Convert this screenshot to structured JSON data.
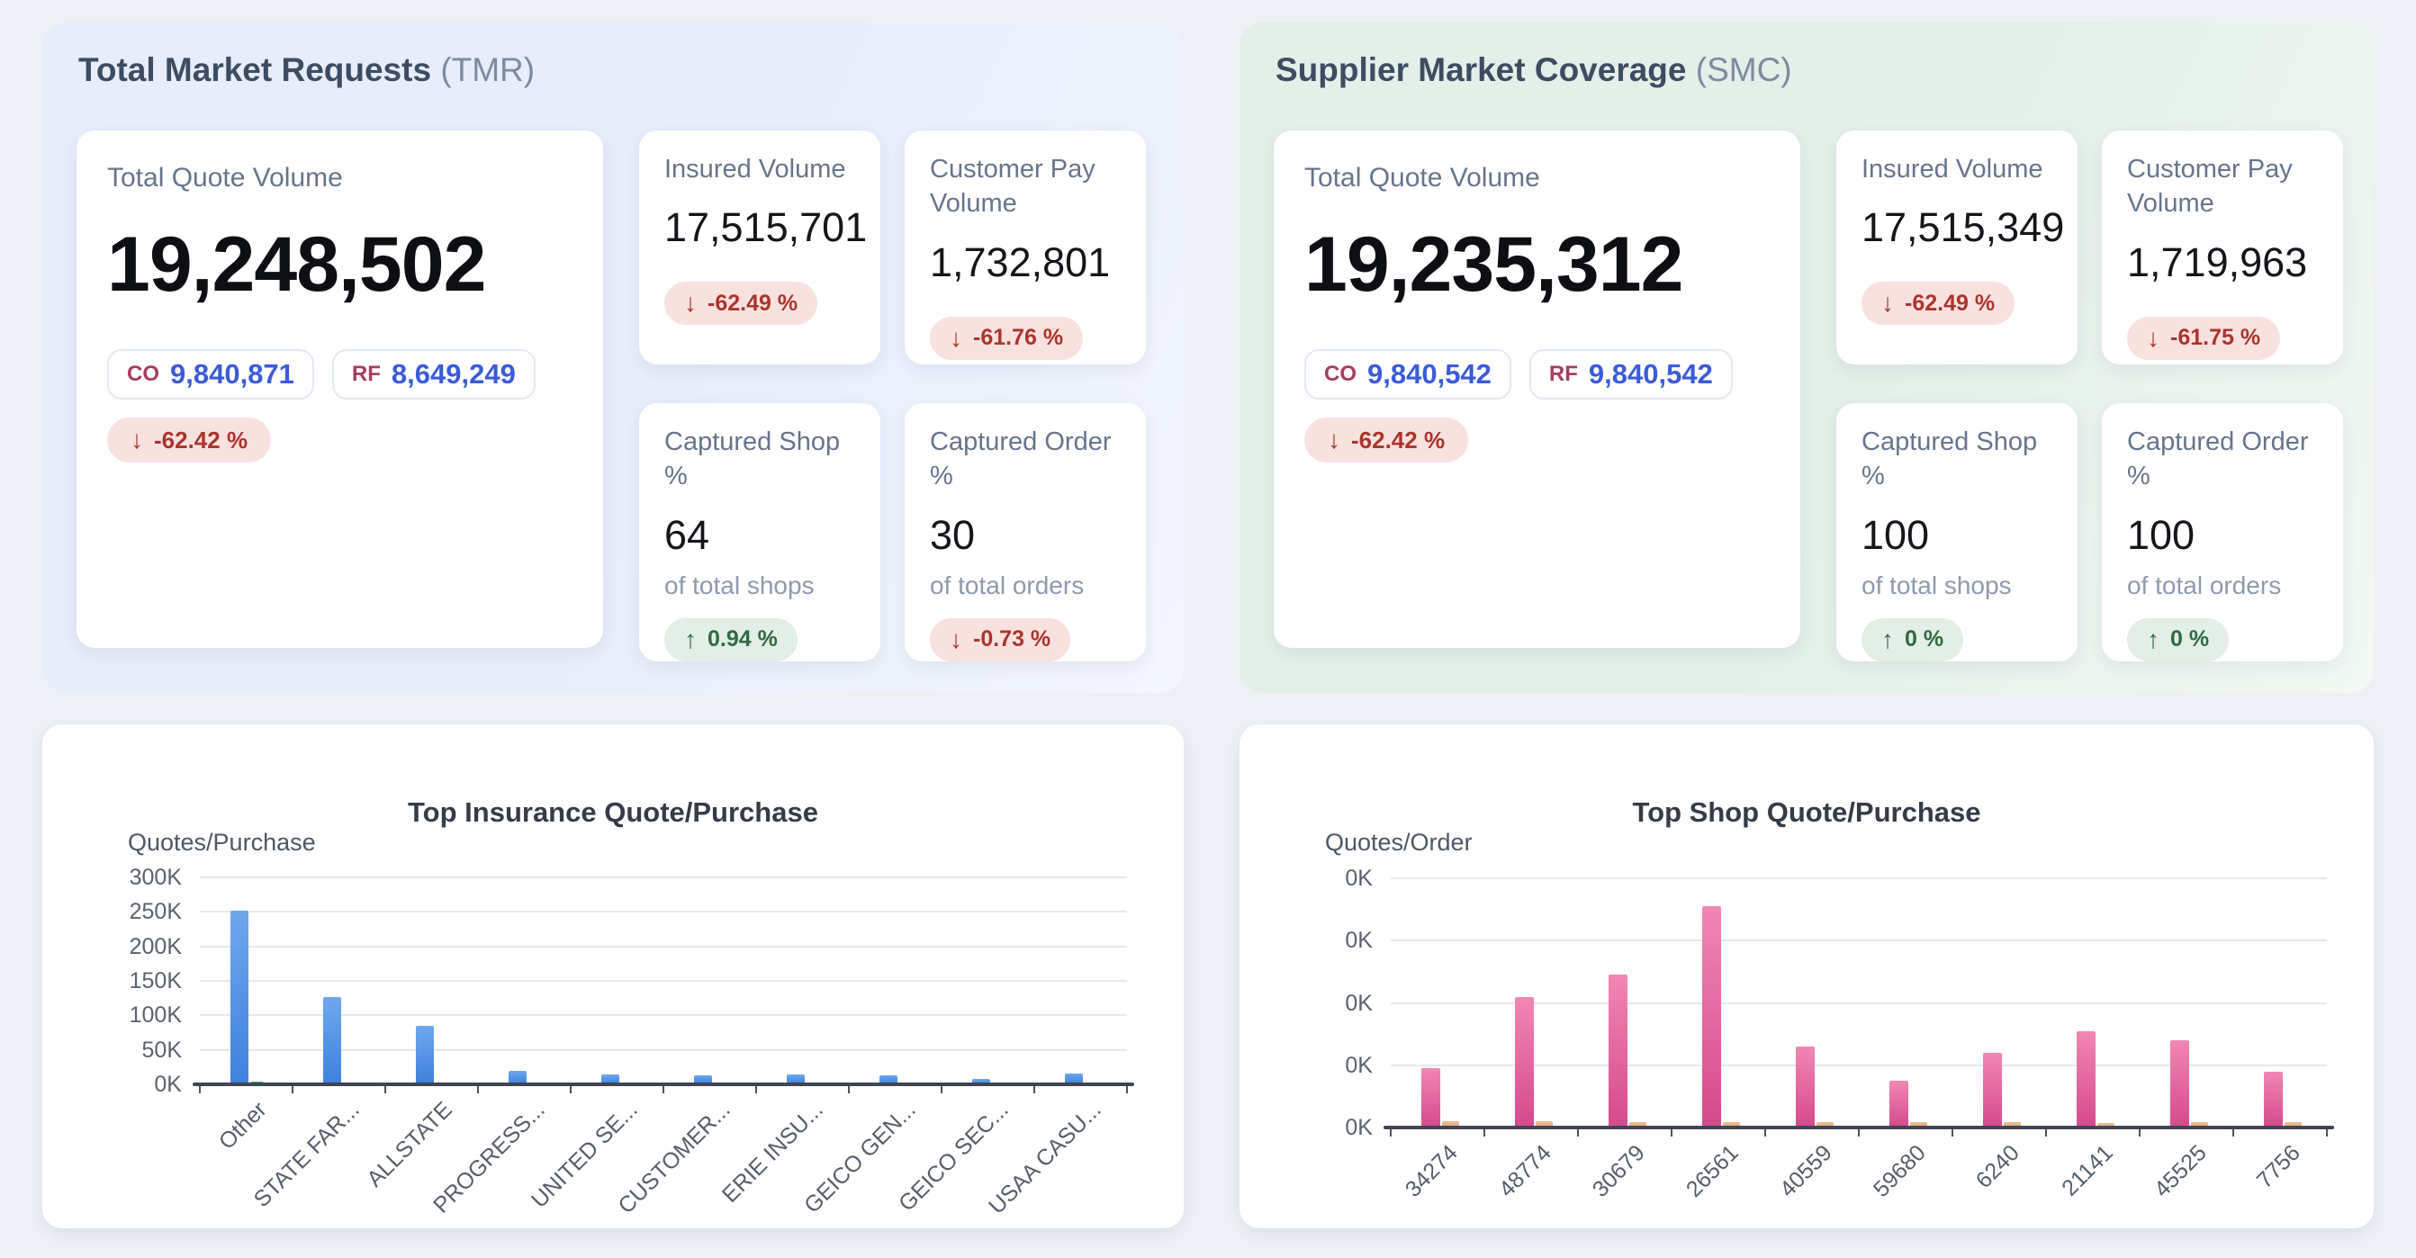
{
  "icons": {
    "arrow_down": "↓",
    "arrow_up": "↑"
  },
  "colors": {
    "page_bg": "#edf0f5",
    "tmr_panel_bg": "#e7edfb",
    "smc_panel_bg": "#e3efe8",
    "badge_tag": "#a63d5e",
    "badge_value": "#3a5bd9",
    "delta_down_bg": "#f8e1de",
    "delta_down_text": "#ab352b",
    "delta_up_bg": "#e2eee6",
    "delta_up_text": "#2e6b40"
  },
  "panels": [
    {
      "title": "Total Market Requests",
      "abbr": "(TMR)",
      "main_card": {
        "label": "Total Quote Volume",
        "value": "19,248,502",
        "badges": [
          {
            "tag": "CO",
            "value": "9,840,871"
          },
          {
            "tag": "RF",
            "value": "8,649,249"
          }
        ],
        "delta": {
          "text": "-62.42 %",
          "direction": "down"
        }
      },
      "stat_cards": [
        {
          "label": "Insured Volume",
          "value": "17,515,701",
          "delta": {
            "text": "-62.49 %",
            "direction": "down"
          }
        },
        {
          "label": "Customer Pay Volume",
          "value": "1,732,801",
          "delta": {
            "text": "-61.76 %",
            "direction": "down"
          }
        },
        {
          "label": "Captured Shop %",
          "value": "64",
          "sub": "of total shops",
          "delta": {
            "text": "0.94 %",
            "direction": "up"
          }
        },
        {
          "label": "Captured Order %",
          "value": "30",
          "sub": "of total orders",
          "delta": {
            "text": "-0.73 %",
            "direction": "down"
          }
        }
      ]
    },
    {
      "title": "Supplier Market Coverage",
      "abbr": "(SMC)",
      "main_card": {
        "label": "Total Quote Volume",
        "value": "19,235,312",
        "badges": [
          {
            "tag": "CO",
            "value": "9,840,542"
          },
          {
            "tag": "RF",
            "value": "9,840,542"
          }
        ],
        "delta": {
          "text": "-62.42 %",
          "direction": "down"
        }
      },
      "stat_cards": [
        {
          "label": "Insured Volume",
          "value": "17,515,349",
          "delta": {
            "text": "-62.49 %",
            "direction": "down"
          }
        },
        {
          "label": "Customer Pay Volume",
          "value": "1,719,963",
          "delta": {
            "text": "-61.75 %",
            "direction": "down"
          }
        },
        {
          "label": "Captured Shop %",
          "value": "100",
          "sub": "of total shops",
          "delta": {
            "text": "0 %",
            "direction": "up"
          }
        },
        {
          "label": "Captured Order %",
          "value": "100",
          "sub": "of total orders",
          "delta": {
            "text": "0 %",
            "direction": "up"
          }
        }
      ]
    }
  ],
  "chart_data": [
    {
      "type": "bar",
      "title": "Top Insurance Quote/Purchase",
      "xlabel": "",
      "ylabel": "Quotes/Purchase",
      "categories": [
        "Other",
        "STATE FAR...",
        "ALLSTATE",
        "PROGRESS...",
        "UNITED SE...",
        "CUSTOMER...",
        "ERIE INSU...",
        "GEICO GEN...",
        "GEICO SEC...",
        "USAA CASU..."
      ],
      "series": [
        {
          "name": "quotes",
          "color_top": "#6fa7ec",
          "color_bottom": "#3d82dc",
          "values": [
            252000,
            126000,
            85000,
            19000,
            15000,
            13000,
            14000,
            13000,
            8000,
            16000
          ]
        },
        {
          "name": "purchases",
          "color_top": "#41b077",
          "color_bottom": "#339d63",
          "values": [
            4500,
            2000,
            800,
            500,
            400,
            350,
            400,
            350,
            250,
            450
          ]
        }
      ],
      "ylim": [
        0,
        300000
      ],
      "yticks": [
        "300K",
        "250K",
        "200K",
        "150K",
        "100K",
        "50K",
        "0K"
      ],
      "grid": true,
      "legend": "none"
    },
    {
      "type": "bar",
      "title": "Top Shop Quote/Purchase",
      "xlabel": "",
      "ylabel": "Quotes/Order",
      "categories": [
        "34274",
        "48774",
        "30679",
        "26561",
        "40559",
        "59680",
        "6240",
        "21141",
        "45525",
        "7756"
      ],
      "series": [
        {
          "name": "quotes",
          "color_top": "#f087b4",
          "color_bottom": "#d6498d",
          "values": [
            95,
            210,
            245,
            355,
            130,
            75,
            120,
            155,
            140,
            90
          ]
        },
        {
          "name": "orders",
          "color_top": "#efbd93",
          "color_bottom": "#e6a87c",
          "values": [
            10,
            10,
            9,
            9,
            9,
            8,
            9,
            7,
            8,
            8
          ]
        }
      ],
      "ylim": [
        0,
        400
      ],
      "yticks": [
        "0K",
        "0K",
        "0K",
        "0K",
        "0K"
      ],
      "grid": true,
      "legend": "none"
    }
  ]
}
